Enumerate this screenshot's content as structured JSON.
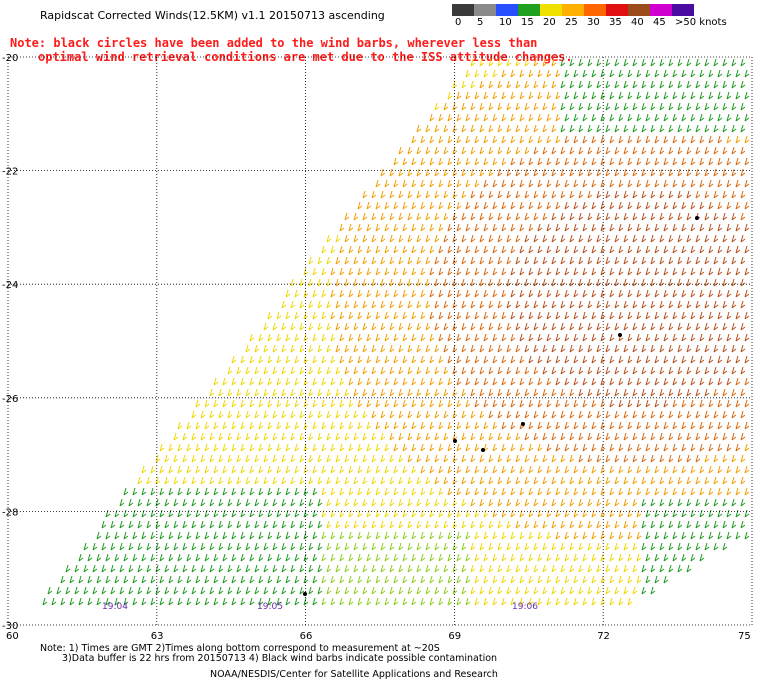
{
  "title": "Rapidscat Corrected Winds(12.5KM) v1.1 20150713 ascending",
  "note": {
    "line1": "Note: black circles have been added to the wind barbs, wherever less than",
    "line2": "optimal wind retrieval conditions are met due to the ISS attitude changes."
  },
  "legend": {
    "labels": [
      "0",
      "5",
      "10",
      "15",
      "20",
      "25",
      "30",
      "35",
      "40",
      "45",
      ">50 knots"
    ],
    "colors": [
      "#3a3a3a",
      "#8a8a8a",
      "#2850ff",
      "#1fa01f",
      "#f0e000",
      "#ffb000",
      "#ff6600",
      "#e01010",
      "#9b4a1a",
      "#d000d0",
      "#4a0ba0"
    ]
  },
  "axes": {
    "lat_labels": [
      "-20",
      "-22",
      "-24",
      "-26",
      "-28",
      "-30"
    ],
    "lon_labels": [
      "60",
      "63",
      "66",
      "69",
      "72",
      "75"
    ]
  },
  "time_labels": [
    "19:04",
    "19:05",
    "19:06"
  ],
  "footer": {
    "line1": "Note: 1) Times are GMT 2)Times along bottom correspond to measurement at ~20S",
    "line2": "3)Data buffer is 22 hrs from 20150713 4) Black wind barbs indicate possible contamination",
    "line3": "NOAA/NESDIS/Center for Satellite Applications and Research"
  },
  "colors": {
    "calm_green": "#1f9a1f",
    "light_green": "#8ccf1a",
    "yellow": "#f0d800",
    "orange": "#f0a000",
    "dark_orange": "#d86a10",
    "brown": "#b5521e",
    "black": "#000000"
  }
}
